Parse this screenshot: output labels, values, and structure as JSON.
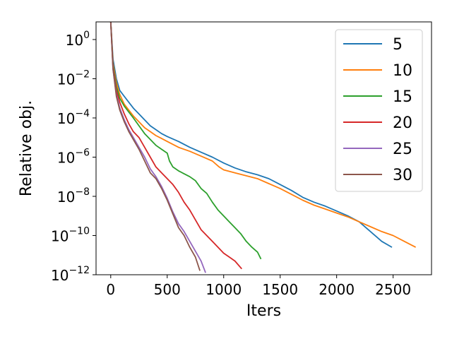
{
  "chart_data": {
    "type": "line",
    "xlabel": "Iters",
    "ylabel": "Relative obj.",
    "xlim": [
      -130,
      2840
    ],
    "ylim_log10": [
      -12,
      0.9
    ],
    "y_scale": "log",
    "x_ticks": [
      0,
      500,
      1000,
      1500,
      2000,
      2500
    ],
    "x_tick_labels": [
      "0",
      "500",
      "1000",
      "1500",
      "2000",
      "2500"
    ],
    "y_ticks_log10": [
      0,
      -2,
      -4,
      -6,
      -8,
      -10,
      -12
    ],
    "y_tick_labels": [
      {
        "base": "10",
        "exp": "0"
      },
      {
        "base": "10",
        "exp": "−2"
      },
      {
        "base": "10",
        "exp": "−4"
      },
      {
        "base": "10",
        "exp": "−6"
      },
      {
        "base": "10",
        "exp": "−8"
      },
      {
        "base": "10",
        "exp": "−10"
      },
      {
        "base": "10",
        "exp": "−12"
      }
    ],
    "legend_position": "top-right",
    "grid": false,
    "series": [
      {
        "name": "5",
        "color": "#1f77b4",
        "points": [
          [
            0,
            0.9
          ],
          [
            20,
            -1.0
          ],
          [
            50,
            -2.0
          ],
          [
            80,
            -2.6
          ],
          [
            120,
            -2.9
          ],
          [
            160,
            -3.2
          ],
          [
            200,
            -3.5
          ],
          [
            250,
            -3.8
          ],
          [
            300,
            -4.1
          ],
          [
            350,
            -4.4
          ],
          [
            400,
            -4.6
          ],
          [
            450,
            -4.8
          ],
          [
            500,
            -4.95
          ],
          [
            600,
            -5.2
          ],
          [
            700,
            -5.5
          ],
          [
            800,
            -5.75
          ],
          [
            900,
            -6.0
          ],
          [
            1000,
            -6.3
          ],
          [
            1100,
            -6.55
          ],
          [
            1200,
            -6.75
          ],
          [
            1300,
            -6.9
          ],
          [
            1400,
            -7.1
          ],
          [
            1500,
            -7.4
          ],
          [
            1600,
            -7.7
          ],
          [
            1700,
            -8.05
          ],
          [
            1800,
            -8.3
          ],
          [
            1900,
            -8.5
          ],
          [
            2000,
            -8.75
          ],
          [
            2100,
            -9.0
          ],
          [
            2200,
            -9.3
          ],
          [
            2300,
            -9.8
          ],
          [
            2400,
            -10.3
          ],
          [
            2490,
            -10.6
          ]
        ]
      },
      {
        "name": "10",
        "color": "#ff7f0e",
        "points": [
          [
            0,
            0.9
          ],
          [
            20,
            -1.2
          ],
          [
            50,
            -2.2
          ],
          [
            80,
            -2.8
          ],
          [
            120,
            -3.3
          ],
          [
            160,
            -3.6
          ],
          [
            200,
            -3.9
          ],
          [
            250,
            -4.2
          ],
          [
            300,
            -4.5
          ],
          [
            350,
            -4.7
          ],
          [
            400,
            -4.9
          ],
          [
            450,
            -5.05
          ],
          [
            500,
            -5.2
          ],
          [
            600,
            -5.5
          ],
          [
            700,
            -5.7
          ],
          [
            800,
            -5.95
          ],
          [
            900,
            -6.2
          ],
          [
            960,
            -6.5
          ],
          [
            1000,
            -6.65
          ],
          [
            1100,
            -6.8
          ],
          [
            1200,
            -6.95
          ],
          [
            1300,
            -7.1
          ],
          [
            1400,
            -7.35
          ],
          [
            1500,
            -7.6
          ],
          [
            1600,
            -7.9
          ],
          [
            1700,
            -8.2
          ],
          [
            1800,
            -8.45
          ],
          [
            1900,
            -8.65
          ],
          [
            2000,
            -8.85
          ],
          [
            2100,
            -9.05
          ],
          [
            2200,
            -9.3
          ],
          [
            2300,
            -9.55
          ],
          [
            2400,
            -9.8
          ],
          [
            2500,
            -10.0
          ],
          [
            2600,
            -10.3
          ],
          [
            2700,
            -10.6
          ]
        ]
      },
      {
        "name": "15",
        "color": "#2ca02c",
        "points": [
          [
            0,
            0.9
          ],
          [
            20,
            -1.3
          ],
          [
            50,
            -2.4
          ],
          [
            80,
            -3.0
          ],
          [
            120,
            -3.4
          ],
          [
            160,
            -3.7
          ],
          [
            200,
            -4.0
          ],
          [
            250,
            -4.4
          ],
          [
            300,
            -4.8
          ],
          [
            350,
            -5.1
          ],
          [
            400,
            -5.4
          ],
          [
            450,
            -5.6
          ],
          [
            500,
            -5.8
          ],
          [
            520,
            -6.2
          ],
          [
            550,
            -6.5
          ],
          [
            600,
            -6.7
          ],
          [
            650,
            -6.85
          ],
          [
            700,
            -7.0
          ],
          [
            750,
            -7.2
          ],
          [
            800,
            -7.6
          ],
          [
            850,
            -7.85
          ],
          [
            900,
            -8.3
          ],
          [
            950,
            -8.7
          ],
          [
            1000,
            -9.0
          ],
          [
            1050,
            -9.3
          ],
          [
            1100,
            -9.6
          ],
          [
            1150,
            -9.9
          ],
          [
            1200,
            -10.3
          ],
          [
            1250,
            -10.6
          ],
          [
            1300,
            -10.85
          ],
          [
            1330,
            -11.2
          ]
        ]
      },
      {
        "name": "20",
        "color": "#d62728",
        "points": [
          [
            0,
            0.9
          ],
          [
            20,
            -1.4
          ],
          [
            50,
            -2.6
          ],
          [
            80,
            -3.2
          ],
          [
            120,
            -3.8
          ],
          [
            160,
            -4.3
          ],
          [
            200,
            -4.7
          ],
          [
            250,
            -5.0
          ],
          [
            300,
            -5.5
          ],
          [
            350,
            -6.0
          ],
          [
            400,
            -6.5
          ],
          [
            450,
            -6.8
          ],
          [
            500,
            -7.1
          ],
          [
            550,
            -7.4
          ],
          [
            600,
            -7.8
          ],
          [
            650,
            -8.3
          ],
          [
            700,
            -8.7
          ],
          [
            750,
            -9.2
          ],
          [
            800,
            -9.7
          ],
          [
            850,
            -10.0
          ],
          [
            900,
            -10.3
          ],
          [
            950,
            -10.6
          ],
          [
            1000,
            -10.9
          ],
          [
            1050,
            -11.1
          ],
          [
            1100,
            -11.3
          ],
          [
            1160,
            -11.7
          ]
        ]
      },
      {
        "name": "25",
        "color": "#9467bd",
        "points": [
          [
            0,
            0.9
          ],
          [
            20,
            -1.5
          ],
          [
            50,
            -2.8
          ],
          [
            80,
            -3.5
          ],
          [
            120,
            -4.1
          ],
          [
            160,
            -4.6
          ],
          [
            200,
            -5.0
          ],
          [
            250,
            -5.5
          ],
          [
            300,
            -6.0
          ],
          [
            350,
            -6.6
          ],
          [
            400,
            -7.0
          ],
          [
            450,
            -7.5
          ],
          [
            500,
            -8.1
          ],
          [
            550,
            -8.8
          ],
          [
            600,
            -9.4
          ],
          [
            650,
            -9.8
          ],
          [
            700,
            -10.3
          ],
          [
            750,
            -10.8
          ],
          [
            800,
            -11.3
          ],
          [
            840,
            -11.9
          ]
        ]
      },
      {
        "name": "30",
        "color": "#8c564b",
        "points": [
          [
            0,
            0.9
          ],
          [
            20,
            -1.5
          ],
          [
            50,
            -2.9
          ],
          [
            80,
            -3.6
          ],
          [
            120,
            -4.2
          ],
          [
            160,
            -4.7
          ],
          [
            200,
            -5.1
          ],
          [
            250,
            -5.6
          ],
          [
            300,
            -6.2
          ],
          [
            350,
            -6.8
          ],
          [
            400,
            -7.1
          ],
          [
            450,
            -7.6
          ],
          [
            500,
            -8.2
          ],
          [
            550,
            -8.9
          ],
          [
            600,
            -9.6
          ],
          [
            650,
            -10.0
          ],
          [
            700,
            -10.6
          ],
          [
            750,
            -11.1
          ],
          [
            790,
            -11.8
          ]
        ]
      }
    ]
  }
}
